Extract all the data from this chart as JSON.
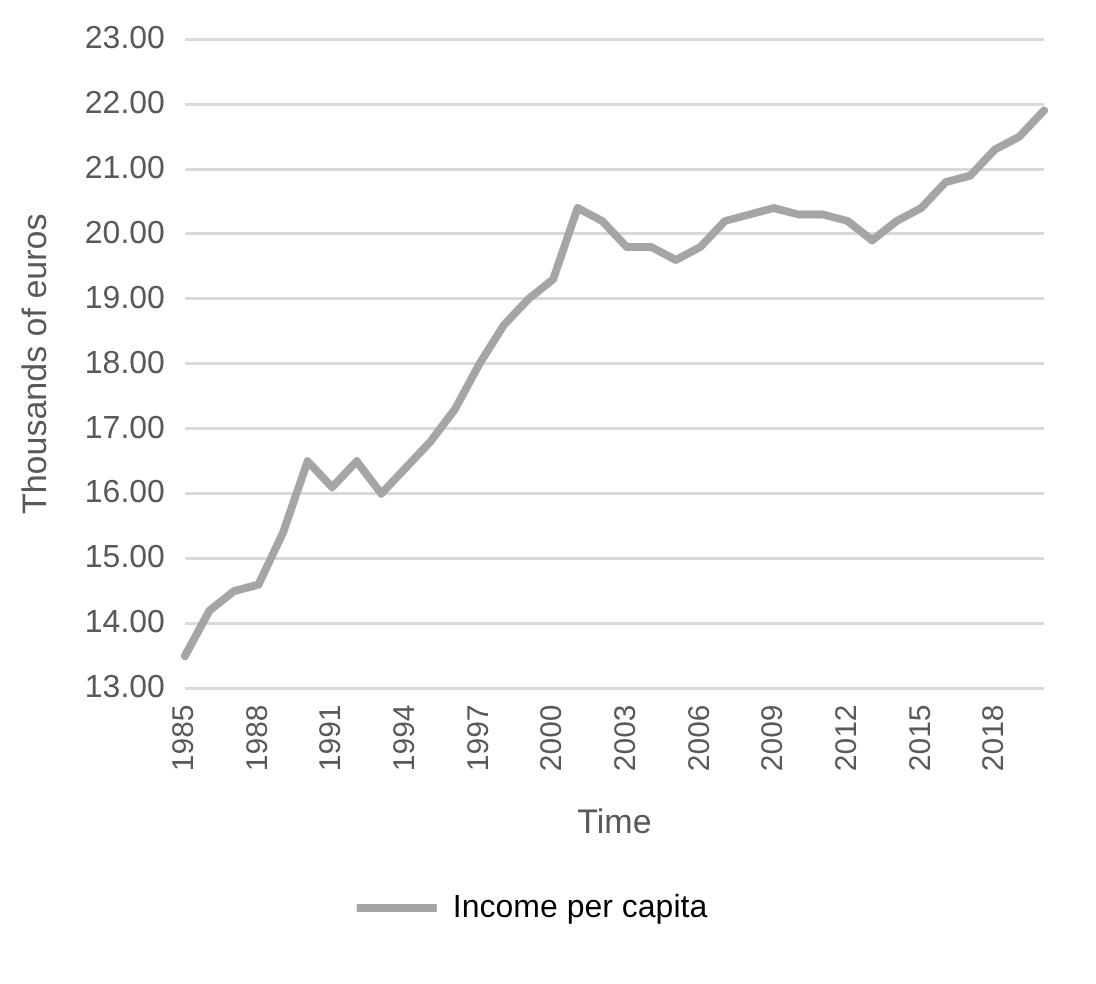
{
  "chart_data": {
    "type": "line",
    "xlabel": "Time",
    "ylabel": "Thousands of euros",
    "categories": [
      "1985",
      null,
      null,
      "1988",
      null,
      null,
      "1991",
      null,
      null,
      "1994",
      null,
      null,
      "1997",
      null,
      null,
      "2000",
      null,
      null,
      "2003",
      null,
      null,
      "2006",
      null,
      null,
      "2009",
      null,
      null,
      "2012",
      null,
      null,
      "2015",
      null,
      null,
      "2018",
      null,
      null
    ],
    "series": [
      {
        "name": "Income per capita",
        "color": "#a5a5a5",
        "values": [
          13.5,
          14.2,
          14.5,
          14.6,
          15.4,
          16.5,
          16.1,
          16.5,
          16.0,
          16.4,
          16.8,
          17.3,
          18.0,
          18.6,
          19.0,
          19.3,
          20.4,
          20.2,
          19.8,
          19.8,
          19.6,
          19.8,
          20.2,
          20.3,
          20.4,
          20.3,
          20.3,
          20.2,
          19.9,
          20.2,
          20.4,
          20.8,
          20.9,
          21.3,
          21.5,
          21.9
        ]
      }
    ],
    "ylim": [
      13,
      23
    ],
    "yticks": [
      {
        "value": 13,
        "label": "13.00"
      },
      {
        "value": 14,
        "label": "14.00"
      },
      {
        "value": 15,
        "label": "15.00"
      },
      {
        "value": 16,
        "label": "16.00"
      },
      {
        "value": 17,
        "label": "17.00"
      },
      {
        "value": 18,
        "label": "18.00"
      },
      {
        "value": 19,
        "label": "19.00"
      },
      {
        "value": 20,
        "label": "20.00"
      },
      {
        "value": 21,
        "label": "21.00"
      },
      {
        "value": 22,
        "label": "22.00"
      },
      {
        "value": 23,
        "label": "23.00"
      }
    ],
    "grid": "y",
    "legend": "bottom",
    "marker": "none",
    "line_style": "solid"
  }
}
